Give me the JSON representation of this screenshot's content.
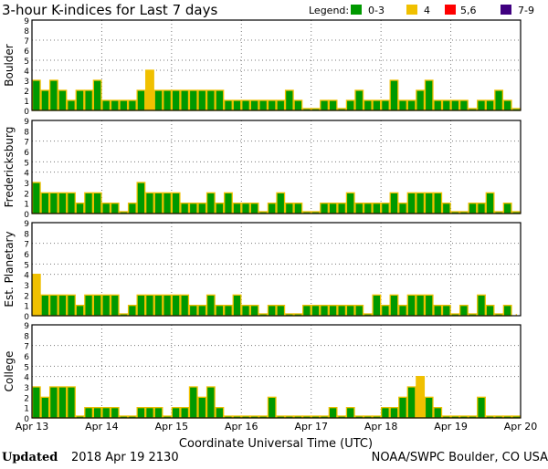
{
  "chart_data": {
    "type": "bar",
    "title": "3-hour K-indices for Last 7 days",
    "legend": {
      "label": "Legend:",
      "placement": "top-right",
      "entries": [
        {
          "label": "0-3",
          "color": "#009900"
        },
        {
          "label": "4",
          "color": "#f0c000"
        },
        {
          "label": "5,6",
          "color": "#ff0000"
        },
        {
          "label": "7-9",
          "color": "#400080"
        }
      ]
    },
    "xlabel": "Coordinate Universal Time (UTC)",
    "x_ticks": [
      "Apr 13",
      "Apr 14",
      "Apr 15",
      "Apr 16",
      "Apr 17",
      "Apr 18",
      "Apr 19",
      "Apr 20"
    ],
    "y_ticks": [
      "0",
      "1",
      "2",
      "3",
      "4",
      "5",
      "6",
      "7",
      "8",
      "9"
    ],
    "ylim": [
      0,
      9
    ],
    "interval_hours": 3,
    "grid": {
      "horizontal_at": [
        4,
        5,
        7
      ],
      "vertical": "daily",
      "style": "dotted"
    },
    "bar_border_color": "#f0c000",
    "panels": [
      {
        "name": "Boulder",
        "values": [
          3,
          2,
          3,
          2,
          1,
          2,
          2,
          3,
          1,
          1,
          1,
          1,
          2,
          4,
          2,
          2,
          2,
          2,
          2,
          2,
          2,
          2,
          1,
          1,
          1,
          1,
          1,
          1,
          1,
          2,
          1,
          0,
          0,
          1,
          1,
          0,
          1,
          2,
          1,
          1,
          1,
          3,
          1,
          1,
          2,
          3,
          1,
          1,
          1,
          1,
          0,
          1,
          1,
          2,
          1,
          0
        ]
      },
      {
        "name": "Fredericksburg",
        "values": [
          3,
          2,
          2,
          2,
          2,
          1,
          2,
          2,
          1,
          1,
          0,
          1,
          3,
          2,
          2,
          2,
          2,
          1,
          1,
          1,
          2,
          1,
          2,
          1,
          1,
          1,
          0,
          1,
          2,
          1,
          1,
          0,
          0,
          1,
          1,
          1,
          2,
          1,
          1,
          1,
          1,
          2,
          1,
          2,
          2,
          2,
          2,
          1,
          0,
          0,
          1,
          1,
          2,
          0,
          1,
          0
        ]
      },
      {
        "name": "Est. Planetary",
        "values": [
          4,
          2,
          2,
          2,
          2,
          1,
          2,
          2,
          2,
          2,
          0,
          1,
          2,
          2,
          2,
          2,
          2,
          2,
          1,
          1,
          2,
          1,
          1,
          2,
          1,
          1,
          0,
          1,
          1,
          0,
          0,
          1,
          1,
          1,
          1,
          1,
          1,
          1,
          0,
          2,
          1,
          2,
          1,
          2,
          2,
          2,
          1,
          1,
          0,
          1,
          0,
          2,
          1,
          0,
          1,
          null
        ]
      },
      {
        "name": "College",
        "values": [
          3,
          2,
          3,
          3,
          3,
          0,
          1,
          1,
          1,
          1,
          0,
          0,
          1,
          1,
          1,
          0,
          1,
          1,
          3,
          2,
          3,
          1,
          0,
          0,
          0,
          0,
          0,
          2,
          0,
          0,
          0,
          0,
          0,
          0,
          1,
          0,
          1,
          0,
          0,
          0,
          1,
          1,
          2,
          3,
          4,
          2,
          1,
          0,
          0,
          0,
          0,
          2,
          0,
          0,
          0,
          0
        ]
      }
    ]
  },
  "footer": {
    "updated_label": "Updated",
    "updated_value": "2018 Apr 19 2130",
    "source": "NOAA/SWPC Boulder, CO USA"
  }
}
